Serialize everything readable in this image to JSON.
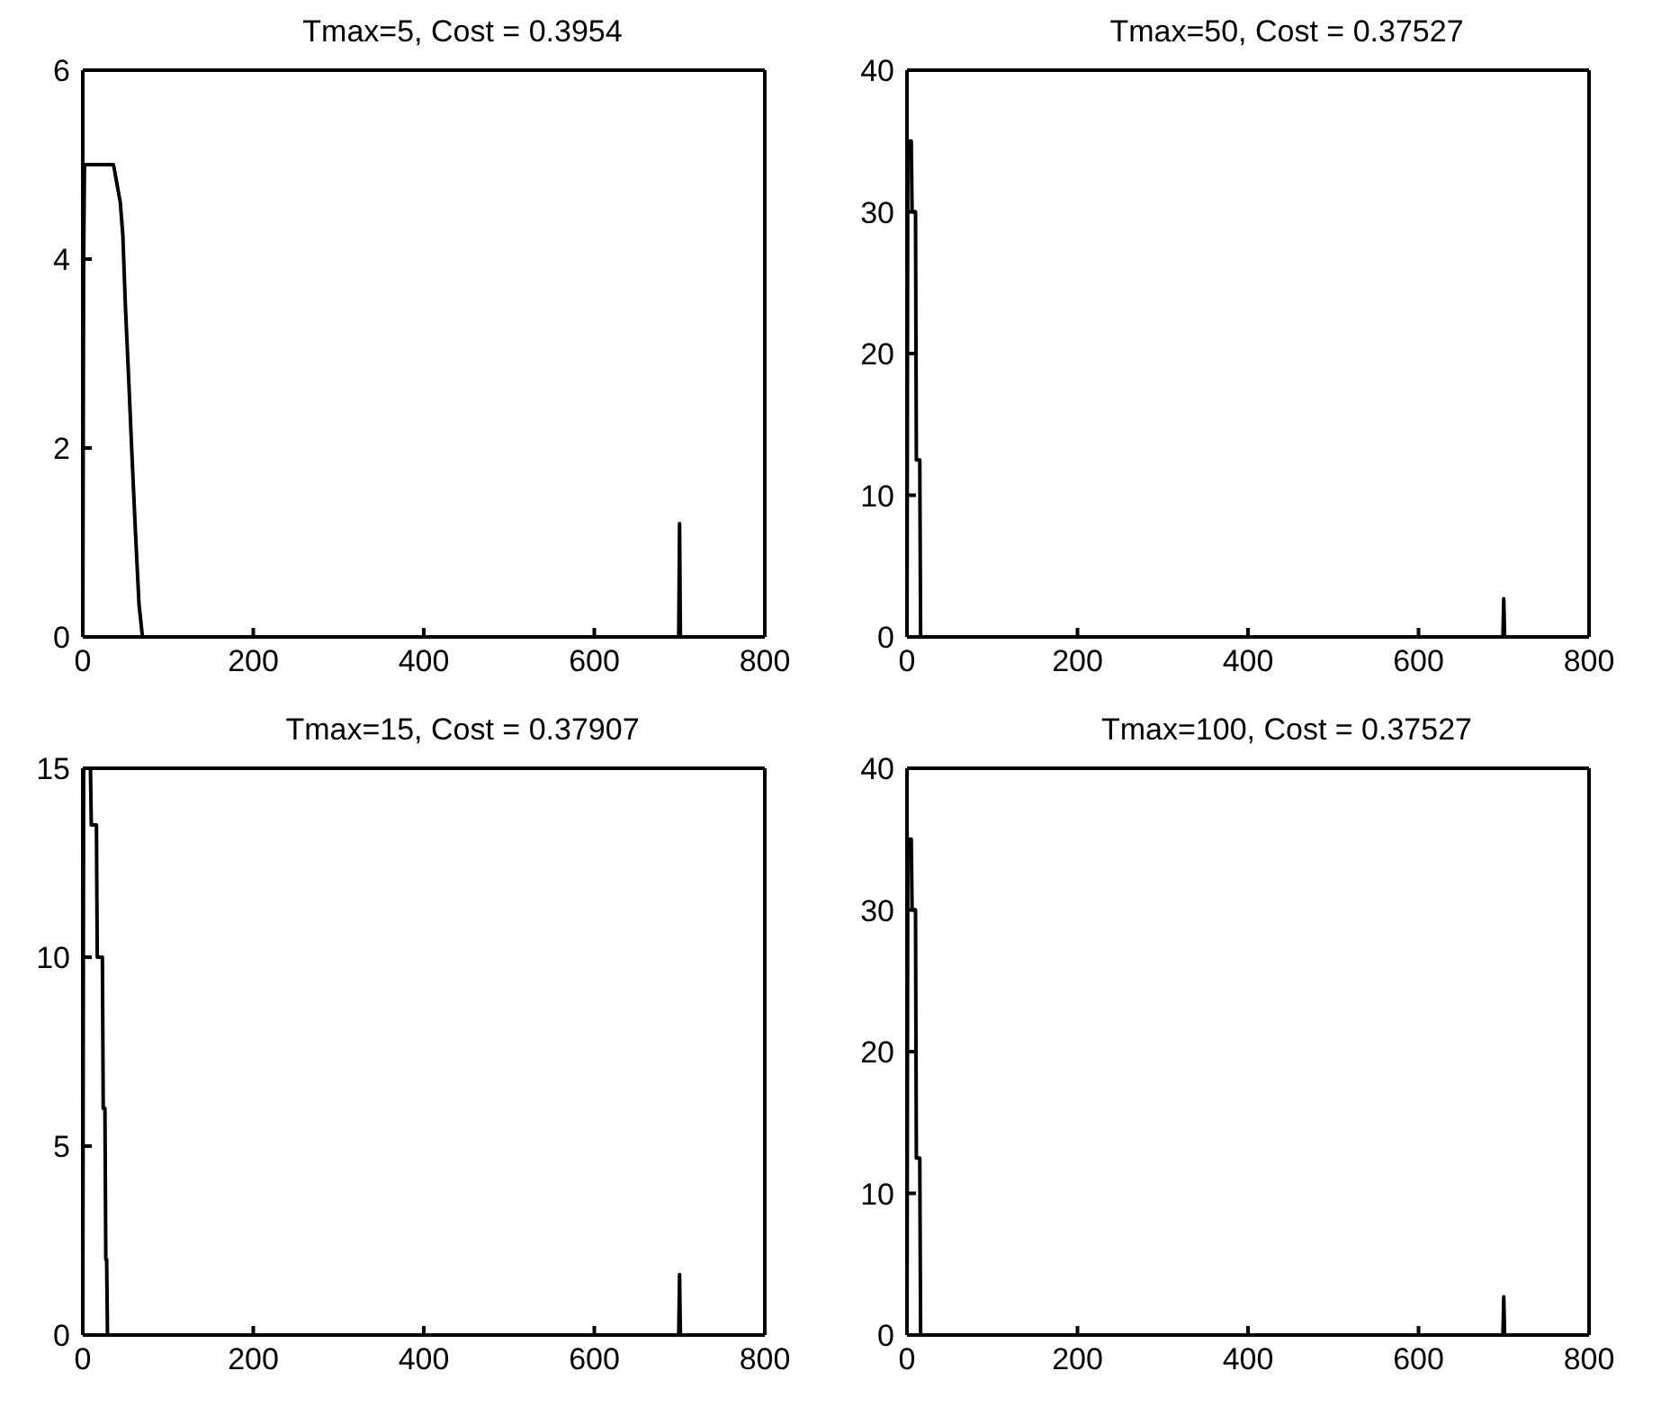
{
  "chart_data": [
    {
      "type": "line",
      "title": "Tmax=5,  Cost = 0.3954",
      "x": [
        0,
        1,
        2,
        36,
        40,
        44,
        47,
        50,
        54,
        58,
        62,
        66,
        70,
        699,
        700,
        701,
        800
      ],
      "values": [
        0,
        4,
        5,
        5,
        4.8,
        4.6,
        4.25,
        3.5,
        2.7,
        1.86,
        1.07,
        0.34,
        0,
        0,
        1.2,
        0,
        0
      ],
      "color": "#000000",
      "xlim": [
        0,
        800
      ],
      "xticks": [
        0,
        200,
        400,
        600,
        800
      ],
      "ylim": [
        0,
        6
      ],
      "yticks": [
        0,
        2,
        4,
        6
      ],
      "grid": false
    },
    {
      "type": "line",
      "title": "Tmax=50,  Cost = 0.37527",
      "x": [
        0,
        1,
        5,
        6,
        10,
        11,
        15,
        16,
        699,
        700,
        701,
        800
      ],
      "values": [
        0,
        35,
        35,
        30,
        30,
        12.5,
        12.5,
        0,
        0,
        2.7,
        0,
        0
      ],
      "color": "#000000",
      "xlim": [
        0,
        800
      ],
      "xticks": [
        0,
        200,
        400,
        600,
        800
      ],
      "ylim": [
        0,
        40
      ],
      "yticks": [
        0,
        10,
        20,
        30,
        40
      ],
      "grid": false
    },
    {
      "type": "line",
      "title": "Tmax=15,  Cost = 0.37907",
      "x": [
        0,
        1,
        9,
        10,
        16,
        17,
        23,
        24,
        26,
        27,
        28,
        29,
        699,
        700,
        701,
        800
      ],
      "values": [
        0,
        15,
        15,
        13.5,
        13.5,
        10,
        10,
        6,
        6,
        2,
        2,
        0,
        0,
        1.6,
        0,
        0
      ],
      "color": "#000000",
      "xlim": [
        0,
        800
      ],
      "xticks": [
        0,
        200,
        400,
        600,
        800
      ],
      "ylim": [
        0,
        15
      ],
      "yticks": [
        0,
        5,
        10,
        15
      ],
      "grid": false
    },
    {
      "type": "line",
      "title": "Tmax=100,  Cost = 0.37527",
      "x": [
        0,
        1,
        5,
        6,
        10,
        11,
        15,
        16,
        699,
        700,
        701,
        800
      ],
      "values": [
        0,
        35,
        35,
        30,
        30,
        12.5,
        12.5,
        0,
        0,
        2.7,
        0,
        0
      ],
      "color": "#000000",
      "xlim": [
        0,
        800
      ],
      "xticks": [
        0,
        200,
        400,
        600,
        800
      ],
      "ylim": [
        0,
        40
      ],
      "yticks": [
        0,
        10,
        20,
        30,
        40
      ],
      "grid": false
    }
  ]
}
